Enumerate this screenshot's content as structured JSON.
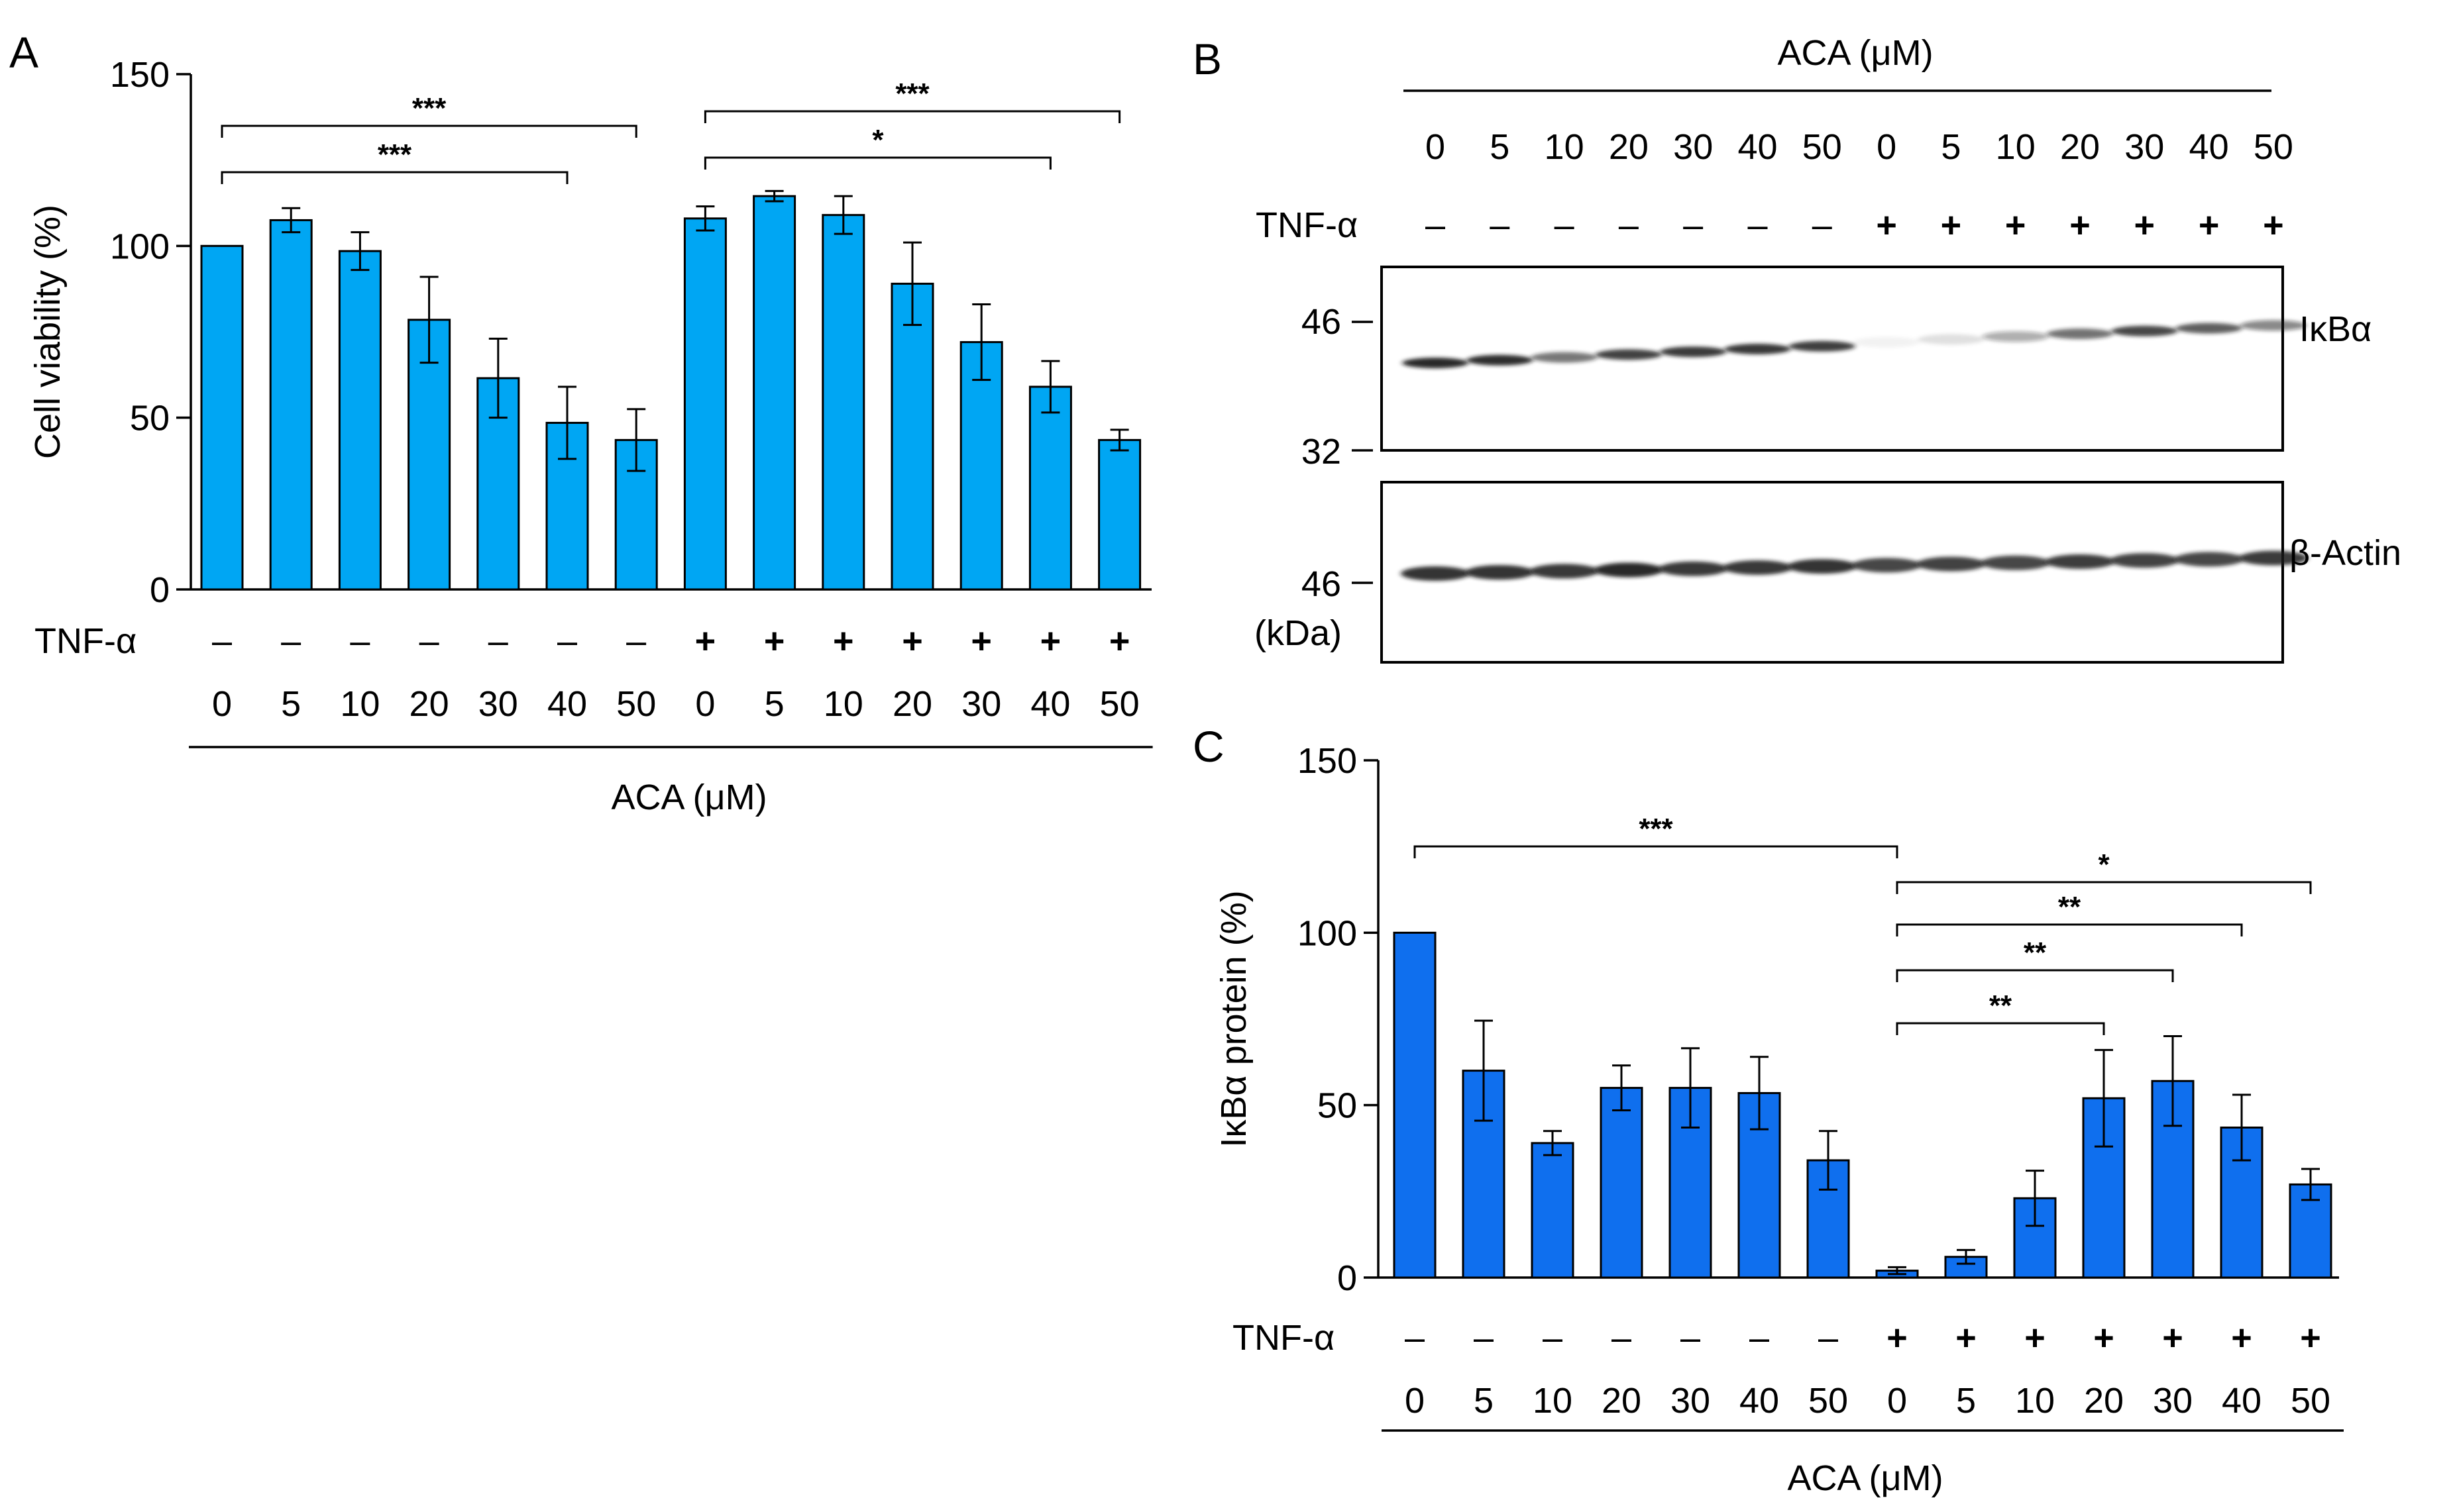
{
  "colors": {
    "bar_a": "#00A6F3",
    "bar_c": "#0F6FEE",
    "stroke": "#000000",
    "band": "#1a1a1a"
  },
  "panel_labels": {
    "a": "A",
    "b": "B",
    "c": "C"
  },
  "chart_data": [
    {
      "id": "A",
      "type": "bar",
      "ylabel": "Cell viability (%)",
      "xlabel": "ACA (μM)",
      "ylim": [
        0,
        150
      ],
      "yticks": [
        0,
        50,
        100,
        150
      ],
      "row_label": "TNF-α",
      "categories": [
        "0",
        "5",
        "10",
        "20",
        "30",
        "40",
        "50",
        "0",
        "5",
        "10",
        "20",
        "30",
        "40",
        "50"
      ],
      "tnf": [
        "–",
        "–",
        "–",
        "–",
        "–",
        "–",
        "–",
        "+",
        "+",
        "+",
        "+",
        "+",
        "+",
        "+"
      ],
      "values": [
        100,
        107.5,
        98.5,
        78.5,
        61.5,
        48.5,
        43.5,
        108,
        114.5,
        109,
        89,
        72,
        59,
        43.5
      ],
      "errors": [
        0,
        3.5,
        5.5,
        12.5,
        11.5,
        10.5,
        9,
        3.5,
        1.5,
        5.5,
        12,
        11,
        7.5,
        3
      ],
      "significance": [
        {
          "from": 0,
          "to": 6,
          "label": "***"
        },
        {
          "from": 0,
          "to": 5,
          "label": "***"
        },
        {
          "from": 7,
          "to": 13,
          "label": "***"
        },
        {
          "from": 7,
          "to": 12,
          "label": "*"
        }
      ]
    },
    {
      "id": "C",
      "type": "bar",
      "ylabel": "IκBα protein (%)",
      "xlabel": "ACA (μM)",
      "ylim": [
        0,
        150
      ],
      "yticks": [
        0,
        50,
        100,
        150
      ],
      "row_label": "TNF-α",
      "categories": [
        "0",
        "5",
        "10",
        "20",
        "30",
        "40",
        "50",
        "0",
        "5",
        "10",
        "20",
        "30",
        "40",
        "50"
      ],
      "tnf": [
        "–",
        "–",
        "–",
        "–",
        "–",
        "–",
        "–",
        "+",
        "+",
        "+",
        "+",
        "+",
        "+",
        "+"
      ],
      "values": [
        100,
        60,
        39,
        55,
        55,
        53.5,
        34,
        2,
        6,
        23,
        52,
        57,
        43.5,
        27
      ],
      "errors": [
        0,
        14.5,
        3.5,
        6.5,
        11.5,
        10.5,
        8.5,
        1,
        2,
        8,
        14,
        13,
        9.5,
        4.5
      ],
      "significance": [
        {
          "from": 0,
          "to": 7,
          "label": "***"
        },
        {
          "from": 7,
          "to": 13,
          "label": "*"
        },
        {
          "from": 7,
          "to": 12,
          "label": "**"
        },
        {
          "from": 7,
          "to": 11,
          "label": "**"
        },
        {
          "from": 7,
          "to": 10,
          "label": "**"
        }
      ]
    }
  ],
  "blot": {
    "header": "ACA (μM)",
    "lanes": [
      "0",
      "5",
      "10",
      "20",
      "30",
      "40",
      "50",
      "0",
      "5",
      "10",
      "20",
      "30",
      "40",
      "50"
    ],
    "tnf_label": "TNF-α",
    "tnf": [
      "–",
      "–",
      "–",
      "–",
      "–",
      "–",
      "–",
      "+",
      "+",
      "+",
      "+",
      "+",
      "+",
      "+"
    ],
    "top_panel": {
      "name": "IκBα",
      "markers": [
        "46",
        "32"
      ]
    },
    "bottom_panel": {
      "name": "β-Actin",
      "markers": [
        "46"
      ]
    },
    "unit": "(kDa)",
    "ikba_intensity": [
      0.92,
      0.9,
      0.6,
      0.82,
      0.85,
      0.86,
      0.83,
      0.05,
      0.12,
      0.35,
      0.62,
      0.8,
      0.7,
      0.5
    ],
    "actin_intensity": [
      0.88,
      0.88,
      0.86,
      0.92,
      0.86,
      0.86,
      0.88,
      0.8,
      0.82,
      0.8,
      0.84,
      0.82,
      0.8,
      0.85
    ]
  }
}
